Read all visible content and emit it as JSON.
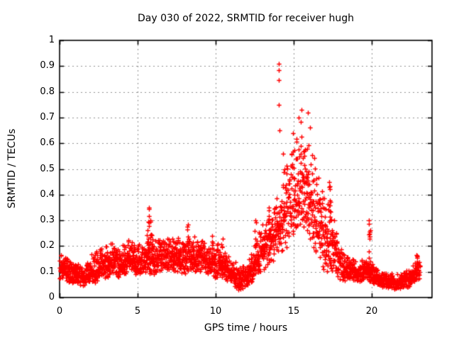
{
  "window": {
    "background": "#ffffff"
  },
  "chart_data": {
    "type": "scatter",
    "title": "Day 030 of 2022, SRMTID for receiver hugh",
    "xlabel": "GPS time / hours",
    "ylabel": "SRMTID / TECUs",
    "series_name": "SRMTID",
    "xlim": [
      0,
      23.86
    ],
    "ylim": [
      0,
      1
    ],
    "x_ticks": [
      0,
      5,
      10,
      15,
      20
    ],
    "x_tick_labels": [
      "0",
      "5",
      "10",
      "15",
      "20"
    ],
    "y_ticks": [
      0,
      0.1,
      0.2,
      0.3,
      0.4,
      0.5,
      0.6,
      0.7,
      0.8,
      0.9,
      1
    ],
    "y_tick_labels": [
      "0",
      "0.1",
      "0.2",
      "0.3",
      "0.4",
      "0.5",
      "0.6",
      "0.7",
      "0.8",
      "0.9",
      "1"
    ],
    "grid": true,
    "grid_style": "dotted",
    "legend": "none",
    "marker": "plus",
    "colors": {
      "marker": "#ff0000",
      "grid": "#909090",
      "axis": "#000000",
      "text": "#000000",
      "background": "#ffffff"
    },
    "t_max": 23.08,
    "n_points": 2600,
    "seed": 20220130,
    "envelope": [
      [
        0.0,
        0.06,
        0.19
      ],
      [
        0.3,
        0.07,
        0.18
      ],
      [
        0.7,
        0.05,
        0.16
      ],
      [
        1.2,
        0.05,
        0.15
      ],
      [
        1.6,
        0.04,
        0.14
      ],
      [
        2.0,
        0.05,
        0.17
      ],
      [
        2.5,
        0.06,
        0.2
      ],
      [
        3.0,
        0.06,
        0.22
      ],
      [
        3.3,
        0.08,
        0.24
      ],
      [
        3.7,
        0.07,
        0.2
      ],
      [
        4.2,
        0.08,
        0.22
      ],
      [
        4.6,
        0.09,
        0.25
      ],
      [
        5.0,
        0.08,
        0.21
      ],
      [
        5.4,
        0.08,
        0.23
      ],
      [
        5.7,
        0.09,
        0.28
      ],
      [
        6.0,
        0.08,
        0.23
      ],
      [
        6.4,
        0.09,
        0.24
      ],
      [
        7.0,
        0.1,
        0.25
      ],
      [
        7.5,
        0.1,
        0.26
      ],
      [
        8.0,
        0.09,
        0.24
      ],
      [
        8.4,
        0.1,
        0.26
      ],
      [
        9.0,
        0.09,
        0.24
      ],
      [
        9.6,
        0.09,
        0.22
      ],
      [
        10.0,
        0.07,
        0.21
      ],
      [
        10.4,
        0.07,
        0.22
      ],
      [
        11.0,
        0.05,
        0.16
      ],
      [
        11.5,
        0.025,
        0.13
      ],
      [
        12.0,
        0.04,
        0.14
      ],
      [
        12.4,
        0.06,
        0.2
      ],
      [
        12.8,
        0.09,
        0.28
      ],
      [
        13.2,
        0.11,
        0.3
      ],
      [
        13.6,
        0.13,
        0.36
      ],
      [
        14.0,
        0.15,
        0.44
      ],
      [
        14.4,
        0.18,
        0.52
      ],
      [
        14.8,
        0.21,
        0.58
      ],
      [
        15.2,
        0.24,
        0.65
      ],
      [
        15.6,
        0.26,
        0.71
      ],
      [
        15.9,
        0.23,
        0.68
      ],
      [
        16.2,
        0.18,
        0.58
      ],
      [
        16.6,
        0.13,
        0.5
      ],
      [
        17.0,
        0.1,
        0.44
      ],
      [
        17.4,
        0.09,
        0.38
      ],
      [
        17.8,
        0.07,
        0.26
      ],
      [
        18.2,
        0.06,
        0.19
      ],
      [
        18.7,
        0.06,
        0.16
      ],
      [
        19.2,
        0.06,
        0.15
      ],
      [
        19.6,
        0.07,
        0.16
      ],
      [
        20.0,
        0.05,
        0.14
      ],
      [
        20.5,
        0.04,
        0.11
      ],
      [
        21.0,
        0.035,
        0.1
      ],
      [
        21.5,
        0.03,
        0.09
      ],
      [
        22.0,
        0.035,
        0.1
      ],
      [
        22.4,
        0.04,
        0.12
      ],
      [
        22.8,
        0.06,
        0.15
      ],
      [
        23.08,
        0.07,
        0.16
      ]
    ],
    "spikes": [
      {
        "t": 5.7,
        "top": 0.35,
        "count": 8
      },
      {
        "t": 5.85,
        "top": 0.3,
        "count": 5
      },
      {
        "t": 8.2,
        "top": 0.285,
        "count": 6
      },
      {
        "t": 9.8,
        "top": 0.24,
        "count": 4
      },
      {
        "t": 10.4,
        "top": 0.23,
        "count": 4
      },
      {
        "t": 12.55,
        "top": 0.3,
        "count": 6
      },
      {
        "t": 13.45,
        "top": 0.35,
        "count": 5
      },
      {
        "t": 17.3,
        "top": 0.45,
        "count": 10
      },
      {
        "t": 19.85,
        "top": 0.3,
        "count": 14
      },
      {
        "t": 22.9,
        "top": 0.165,
        "count": 6
      }
    ],
    "outliers": [
      [
        14.03,
        0.91
      ],
      [
        14.06,
        0.885
      ],
      [
        14.05,
        0.845
      ],
      [
        14.04,
        0.75
      ],
      [
        14.08,
        0.65
      ],
      [
        14.3,
        0.56
      ],
      [
        14.95,
        0.64
      ],
      [
        15.3,
        0.7
      ],
      [
        15.52,
        0.73
      ],
      [
        15.9,
        0.72
      ],
      [
        16.05,
        0.66
      ]
    ]
  }
}
